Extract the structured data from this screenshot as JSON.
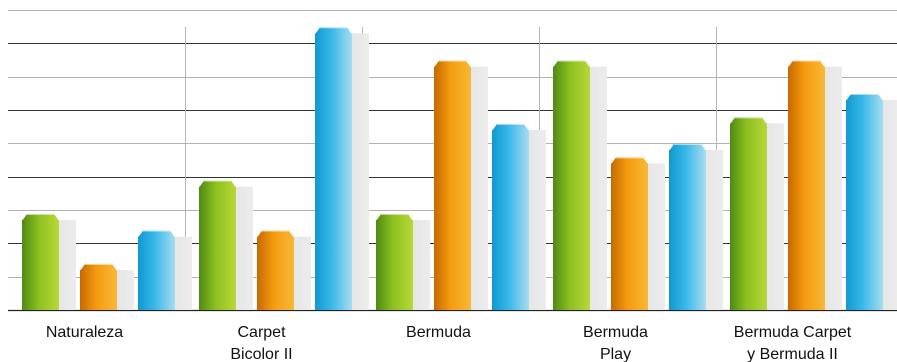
{
  "chart_data": {
    "type": "bar",
    "title": "",
    "xlabel": "",
    "ylabel": "",
    "ylim": [
      0,
      9
    ],
    "gridlines": [
      0,
      1,
      2,
      3,
      4,
      5,
      6,
      7,
      8,
      9
    ],
    "grid": true,
    "legend": "none",
    "categories": [
      [
        "Naturaleza"
      ],
      [
        "Carpet",
        "Bicolor II"
      ],
      [
        "Bermuda"
      ],
      [
        "Bermuda",
        "Play"
      ],
      [
        "Bermuda Carpet",
        "y Bermuda II"
      ]
    ],
    "series": [
      {
        "color": "#78b41e",
        "values": [
          2.7,
          3.7,
          2.7,
          7.3,
          5.6
        ]
      },
      {
        "color": "#f08c00",
        "values": [
          1.2,
          2.2,
          7.3,
          4.4,
          7.3
        ]
      },
      {
        "color": "#1aaee0",
        "values": [
          2.2,
          8.3,
          5.4,
          4.8,
          6.3
        ]
      }
    ]
  }
}
